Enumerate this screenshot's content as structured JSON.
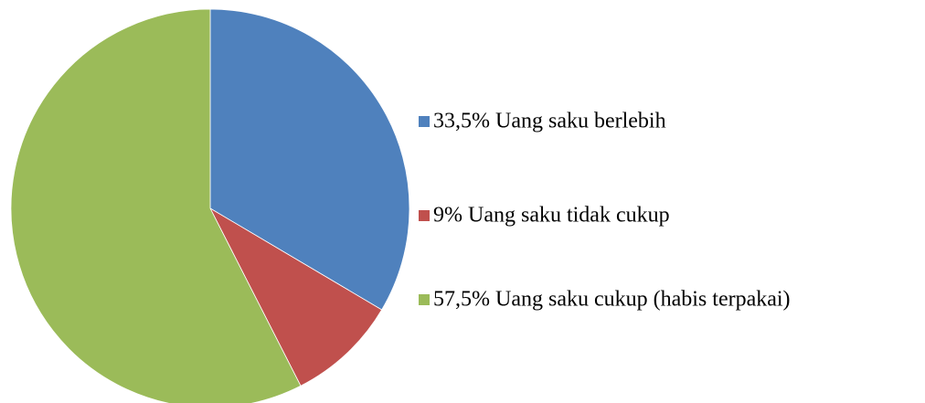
{
  "chart_data": {
    "type": "pie",
    "categories": [
      "33,5% Uang saku berlebih",
      "9% Uang saku tidak cukup",
      "57,5% Uang saku cukup (habis terpakai)"
    ],
    "values": [
      33.5,
      9,
      57.5
    ],
    "colors": [
      "#4f81bd",
      "#c0504d",
      "#9bbb59"
    ],
    "legend": "right"
  }
}
